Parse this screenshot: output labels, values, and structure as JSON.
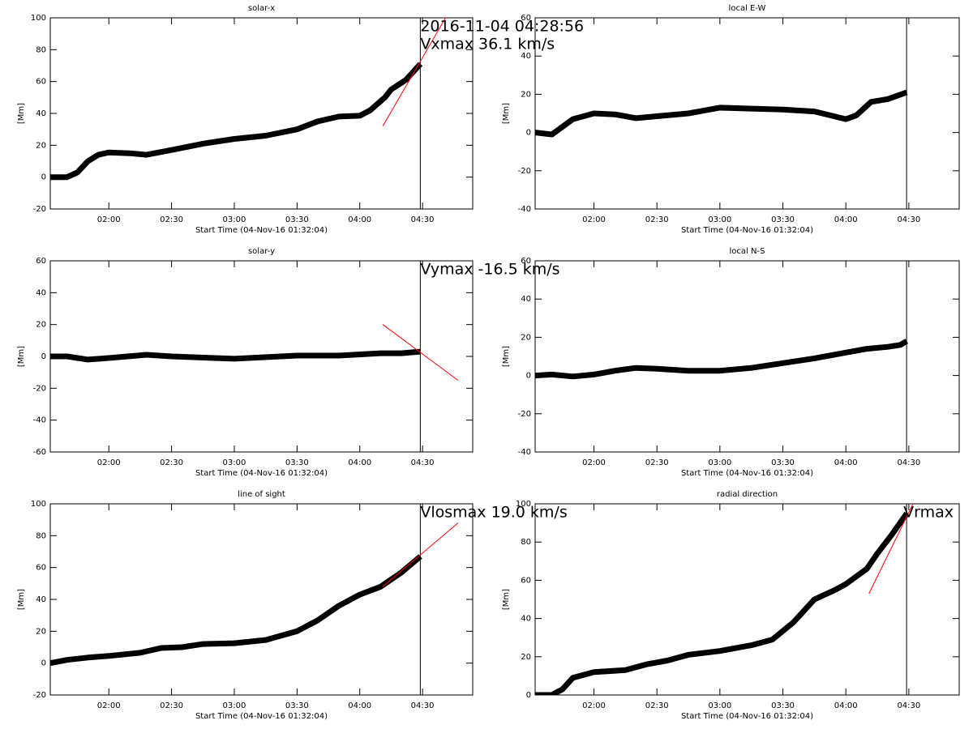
{
  "chart_data": [
    {
      "type": "line",
      "title": "solar-x",
      "xlabel": "Start Time (04-Nov-16 01:32:04)",
      "ylabel": "[Mm]",
      "xlim": [
        "01:32",
        "04:54"
      ],
      "xticks": [
        "02:00",
        "02:30",
        "03:00",
        "03:30",
        "04:00",
        "04:30"
      ],
      "ylim": [
        -20,
        100
      ],
      "yticks": [
        -20,
        0,
        20,
        40,
        60,
        80,
        100
      ],
      "vline": "04:28:56",
      "annotations": [
        "2016-11-04 04:28:56",
        "Vxmax   36.1 km/s"
      ],
      "series": [
        {
          "color": "#000000",
          "x": [
            "01:32",
            "01:40",
            "01:45",
            "01:50",
            "01:55",
            "02:00",
            "02:10",
            "02:18",
            "02:30",
            "02:45",
            "03:00",
            "03:15",
            "03:30",
            "03:40",
            "03:50",
            "04:00",
            "04:05",
            "04:12",
            "04:15",
            "04:22",
            "04:29"
          ],
          "values": [
            0,
            0,
            3,
            10,
            14,
            15.5,
            15,
            14,
            17,
            21,
            24,
            26,
            30,
            35,
            38,
            38.5,
            42,
            50,
            55,
            61,
            71
          ]
        },
        {
          "color": "#ff0000",
          "x": [
            "04:11",
            "04:41"
          ],
          "values": [
            32,
            100
          ]
        }
      ]
    },
    {
      "type": "line",
      "title": "local E-W",
      "xlabel": "Start Time (04-Nov-16 01:32:04)",
      "ylabel": "[Mm]",
      "xlim": [
        "01:32",
        "04:54"
      ],
      "xticks": [
        "02:00",
        "02:30",
        "03:00",
        "03:30",
        "04:00",
        "04:30"
      ],
      "ylim": [
        -40,
        60
      ],
      "yticks": [
        -40,
        -20,
        0,
        20,
        40,
        60
      ],
      "vline": "04:28:56",
      "annotations": [],
      "series": [
        {
          "color": "#000000",
          "x": [
            "01:32",
            "01:40",
            "01:45",
            "01:50",
            "02:00",
            "02:10",
            "02:20",
            "02:30",
            "02:45",
            "03:00",
            "03:15",
            "03:30",
            "03:45",
            "04:00",
            "04:05",
            "04:12",
            "04:20",
            "04:29"
          ],
          "values": [
            0,
            -1,
            3,
            7,
            10,
            9.5,
            7.5,
            8.5,
            10,
            13,
            12.5,
            12,
            11,
            7,
            9,
            16,
            17.5,
            21
          ]
        }
      ]
    },
    {
      "type": "line",
      "title": "solar-y",
      "xlabel": "Start Time (04-Nov-16 01:32:04)",
      "ylabel": "[Mm]",
      "xlim": [
        "01:32",
        "04:54"
      ],
      "xticks": [
        "02:00",
        "02:30",
        "03:00",
        "03:30",
        "04:00",
        "04:30"
      ],
      "ylim": [
        -60,
        60
      ],
      "yticks": [
        -60,
        -40,
        -20,
        0,
        20,
        40,
        60
      ],
      "vline": "04:28:56",
      "annotations": [
        "Vymax   -16.5 km/s"
      ],
      "series": [
        {
          "color": "#000000",
          "x": [
            "01:32",
            "01:40",
            "01:50",
            "02:00",
            "02:18",
            "02:30",
            "03:00",
            "03:30",
            "03:50",
            "04:10",
            "04:20",
            "04:29"
          ],
          "values": [
            0,
            0,
            -2,
            -1,
            1,
            0,
            -1.5,
            0.5,
            0.5,
            2,
            2,
            3
          ]
        },
        {
          "color": "#ff0000",
          "x": [
            "04:11",
            "04:47"
          ],
          "values": [
            20,
            -15
          ]
        }
      ]
    },
    {
      "type": "line",
      "title": "local N-S",
      "xlabel": "Start Time (04-Nov-16 01:32:04)",
      "ylabel": "[Mm]",
      "xlim": [
        "01:32",
        "04:54"
      ],
      "xticks": [
        "02:00",
        "02:30",
        "03:00",
        "03:30",
        "04:00",
        "04:30"
      ],
      "ylim": [
        -40,
        60
      ],
      "yticks": [
        -40,
        -20,
        0,
        20,
        40,
        60
      ],
      "vline": "04:28:56",
      "annotations": [],
      "series": [
        {
          "color": "#000000",
          "x": [
            "01:32",
            "01:40",
            "01:50",
            "02:00",
            "02:10",
            "02:20",
            "02:30",
            "02:45",
            "03:00",
            "03:15",
            "03:30",
            "03:45",
            "04:00",
            "04:10",
            "04:20",
            "04:26",
            "04:29"
          ],
          "values": [
            0,
            0.5,
            -0.5,
            0.5,
            2.5,
            4,
            3.5,
            2.5,
            2.5,
            4,
            6.5,
            9,
            12,
            14,
            15,
            16,
            18
          ]
        }
      ]
    },
    {
      "type": "line",
      "title": "line of sight",
      "xlabel": "Start Time (04-Nov-16 01:32:04)",
      "ylabel": "[Mm]",
      "xlim": [
        "01:32",
        "04:54"
      ],
      "xticks": [
        "02:00",
        "02:30",
        "03:00",
        "03:30",
        "04:00",
        "04:30"
      ],
      "ylim": [
        -20,
        100
      ],
      "yticks": [
        -20,
        0,
        20,
        40,
        60,
        80,
        100
      ],
      "vline": "04:28:56",
      "annotations": [
        "Vlosmax   19.0 km/s"
      ],
      "series": [
        {
          "color": "#000000",
          "x": [
            "01:32",
            "01:40",
            "01:50",
            "02:00",
            "02:15",
            "02:25",
            "02:35",
            "02:45",
            "03:00",
            "03:15",
            "03:30",
            "03:40",
            "03:50",
            "04:00",
            "04:10",
            "04:20",
            "04:29"
          ],
          "values": [
            0,
            2,
            3.5,
            4.5,
            6.5,
            9.5,
            10,
            12,
            12.5,
            14.5,
            20,
            27,
            36,
            43,
            48,
            57,
            67
          ]
        },
        {
          "color": "#ff0000",
          "x": [
            "04:11",
            "04:47"
          ],
          "values": [
            48,
            88
          ]
        }
      ]
    },
    {
      "type": "line",
      "title": "radial direction",
      "xlabel": "Start Time (04-Nov-16 01:32:04)",
      "ylabel": "[Mm]",
      "xlim": [
        "01:32",
        "04:54"
      ],
      "xticks": [
        "02:00",
        "02:30",
        "03:00",
        "03:30",
        "04:00",
        "04:30"
      ],
      "ylim": [
        0,
        100
      ],
      "yticks": [
        0,
        20,
        40,
        60,
        80,
        100
      ],
      "vline": "04:28:56",
      "annotations": [
        "Vrmax"
      ],
      "series": [
        {
          "color": "#000000",
          "x": [
            "01:32",
            "01:40",
            "01:45",
            "01:50",
            "02:00",
            "02:15",
            "02:25",
            "02:35",
            "02:45",
            "03:00",
            "03:15",
            "03:25",
            "03:35",
            "03:45",
            "03:55",
            "04:00",
            "04:10",
            "04:15",
            "04:22",
            "04:29"
          ],
          "values": [
            0,
            0,
            3,
            9,
            12,
            13,
            16,
            18,
            21,
            23,
            26,
            29,
            38,
            50,
            55,
            58,
            66,
            74,
            84,
            95
          ]
        },
        {
          "color": "#ff0000",
          "x": [
            "04:11",
            "04:32"
          ],
          "values": [
            53,
            100
          ]
        }
      ]
    }
  ]
}
